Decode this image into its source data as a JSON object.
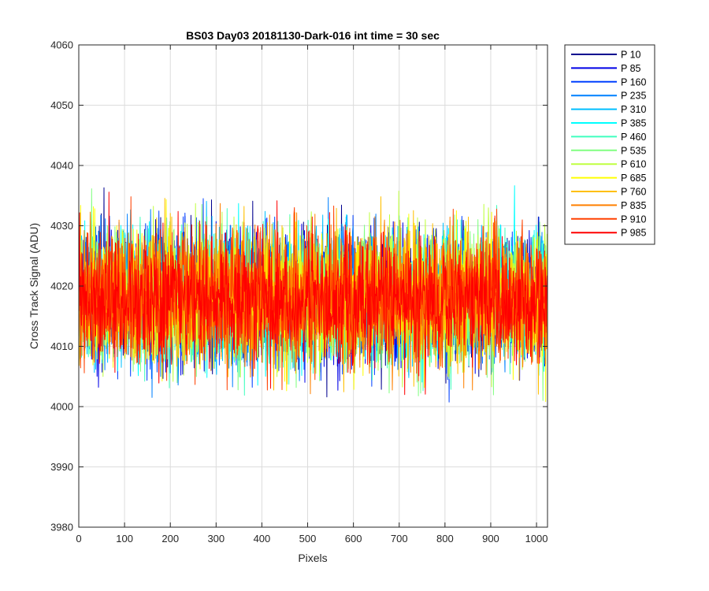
{
  "chart_data": {
    "type": "line",
    "title": "BS03 Day03 20181130-Dark-016 int time = 30 sec",
    "xlabel": "Pixels",
    "ylabel": "Cross Track Signal (ADU)",
    "xlim": [
      0,
      1024
    ],
    "ylim": [
      3980,
      4060
    ],
    "xticks": [
      0,
      100,
      200,
      300,
      400,
      500,
      600,
      700,
      800,
      900,
      1000
    ],
    "yticks": [
      3980,
      3990,
      4000,
      4010,
      4020,
      4030,
      4040,
      4050,
      4060
    ],
    "grid": true,
    "legend_position": "outside-top-right",
    "series": [
      {
        "name": "P 10",
        "color": "#00008f",
        "mean": 4018,
        "spread": 7.5
      },
      {
        "name": "P 85",
        "color": "#0000e6",
        "mean": 4018,
        "spread": 7.5
      },
      {
        "name": "P 160",
        "color": "#0040ff",
        "mean": 4018,
        "spread": 7.5
      },
      {
        "name": "P 235",
        "color": "#0080ff",
        "mean": 4018,
        "spread": 7.5
      },
      {
        "name": "P 310",
        "color": "#00bfff",
        "mean": 4018,
        "spread": 7.5
      },
      {
        "name": "P 385",
        "color": "#00ffff",
        "mean": 4018,
        "spread": 7.5
      },
      {
        "name": "P 460",
        "color": "#40ffbf",
        "mean": 4018,
        "spread": 7.5
      },
      {
        "name": "P 535",
        "color": "#80ff80",
        "mean": 4018,
        "spread": 7.5
      },
      {
        "name": "P 610",
        "color": "#bfff40",
        "mean": 4018,
        "spread": 7.5
      },
      {
        "name": "P 685",
        "color": "#ffff00",
        "mean": 4018,
        "spread": 7.5
      },
      {
        "name": "P 760",
        "color": "#ffbf00",
        "mean": 4018,
        "spread": 7.5
      },
      {
        "name": "P 835",
        "color": "#ff8000",
        "mean": 4018,
        "spread": 7.5
      },
      {
        "name": "P 910",
        "color": "#ff4000",
        "mean": 4018,
        "spread": 7.5
      },
      {
        "name": "P 985",
        "color": "#ff0000",
        "mean": 4018,
        "spread": 7.5
      }
    ]
  }
}
